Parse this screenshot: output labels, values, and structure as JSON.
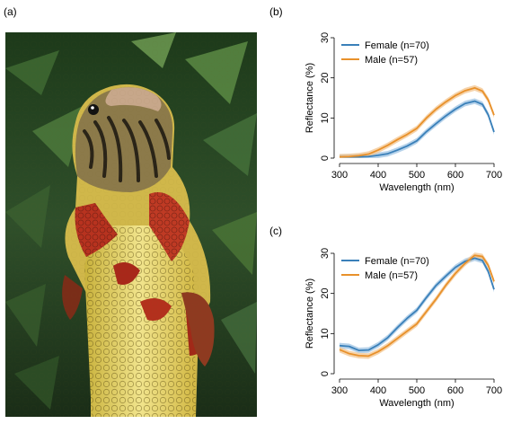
{
  "panels": {
    "a": "(a)",
    "b": "(b)",
    "c": "(c)"
  },
  "colors": {
    "female": "#3a80b9",
    "male": "#e8912b",
    "female_band": "#9ec3e3",
    "male_band": "#f3c48d"
  },
  "chart_data": [
    {
      "type": "line",
      "panel": "(b)",
      "xlabel": "Wavelength (nm)",
      "ylabel": "Reflectance (%)",
      "xlim": [
        300,
        700
      ],
      "ylim": [
        0,
        30
      ],
      "xticks": [
        300,
        400,
        500,
        600,
        700
      ],
      "yticks": [
        0,
        10,
        20,
        30
      ],
      "legend_position": "top-left",
      "x": [
        300,
        325,
        350,
        375,
        400,
        425,
        450,
        475,
        500,
        525,
        550,
        575,
        600,
        625,
        650,
        670,
        685,
        700
      ],
      "series": [
        {
          "name": "Female (n=70)",
          "color": "female",
          "values": [
            0.3,
            0.3,
            0.3,
            0.4,
            0.7,
            1.1,
            2.0,
            3.0,
            4.3,
            6.6,
            8.6,
            10.5,
            12.2,
            13.6,
            14.2,
            13.4,
            10.8,
            6.5
          ]
        },
        {
          "name": "Male (n=57)",
          "color": "male",
          "values": [
            0.3,
            0.4,
            0.6,
            1.0,
            2.0,
            3.2,
            4.6,
            5.9,
            7.4,
            10.0,
            12.2,
            14.0,
            15.6,
            16.8,
            17.5,
            16.7,
            14.5,
            10.7
          ]
        }
      ]
    },
    {
      "type": "line",
      "panel": "(c)",
      "xlabel": "Wavelength (nm)",
      "ylabel": "Reflectance (%)",
      "xlim": [
        300,
        700
      ],
      "ylim": [
        0,
        30
      ],
      "xticks": [
        300,
        400,
        500,
        600,
        700
      ],
      "yticks": [
        0,
        10,
        20,
        30
      ],
      "legend_position": "top-left",
      "x": [
        300,
        325,
        350,
        375,
        400,
        425,
        450,
        475,
        500,
        525,
        550,
        575,
        600,
        625,
        650,
        670,
        685,
        700
      ],
      "series": [
        {
          "name": "Female (n=70)",
          "color": "female",
          "values": [
            7.0,
            6.8,
            5.8,
            5.9,
            7.2,
            9.0,
            11.5,
            13.8,
            15.8,
            19.0,
            22.0,
            24.3,
            26.5,
            28.0,
            28.8,
            28.2,
            25.5,
            21.0
          ]
        },
        {
          "name": "Male (n=57)",
          "color": "male",
          "values": [
            6.0,
            5.0,
            4.5,
            4.4,
            5.5,
            7.0,
            8.8,
            10.6,
            12.4,
            15.5,
            18.6,
            22.0,
            25.0,
            27.5,
            29.5,
            29.2,
            27.0,
            23.0
          ]
        }
      ]
    }
  ]
}
